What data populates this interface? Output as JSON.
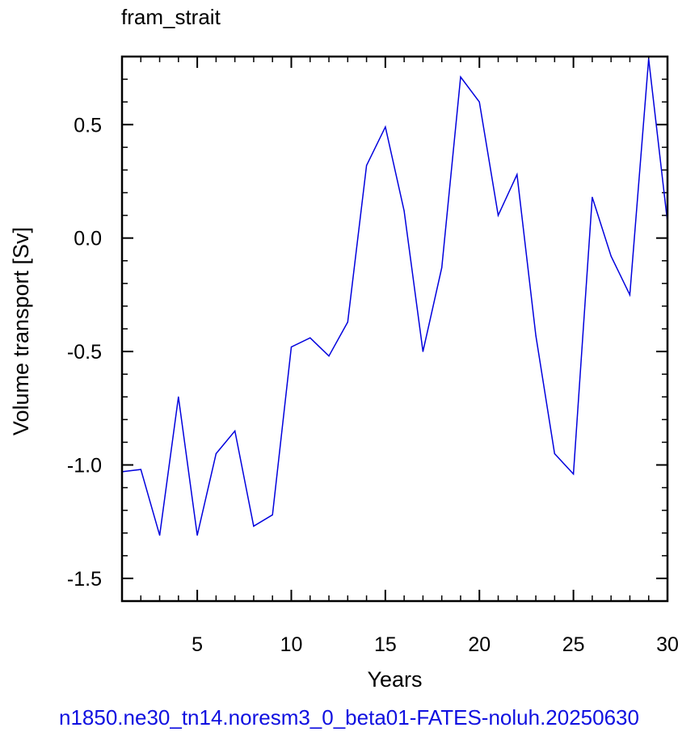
{
  "chart_data": {
    "type": "line",
    "title": "fram_strait",
    "xlabel": "Years",
    "ylabel": "Volume transport [Sv]",
    "footer": "n1850.ne30_tn14.noresm3_0_beta01-FATES-noluh.20250630",
    "xlim": [
      1,
      30
    ],
    "ylim": [
      -1.6,
      0.8
    ],
    "xticks": [
      5,
      10,
      15,
      20,
      25,
      30
    ],
    "xtick_labels": [
      "5",
      "10",
      "15",
      "20",
      "25",
      "30"
    ],
    "yticks": [
      -1.5,
      -1.0,
      -0.5,
      0.0,
      0.5
    ],
    "ytick_labels": [
      "-1.5",
      "-1.0",
      "-0.5",
      "0.0",
      "0.5"
    ],
    "grid": false,
    "series": [
      {
        "color": "#0000dd",
        "x": [
          1,
          2,
          3,
          4,
          5,
          6,
          7,
          8,
          9,
          10,
          11,
          12,
          13,
          14,
          15,
          16,
          17,
          18,
          19,
          20,
          21,
          22,
          23,
          24,
          25,
          26,
          27,
          28,
          29,
          30
        ],
        "values": [
          -1.03,
          -1.02,
          -1.31,
          -0.7,
          -1.31,
          -0.95,
          -0.85,
          -1.27,
          -1.22,
          -0.48,
          -0.44,
          -0.52,
          -0.37,
          0.32,
          0.49,
          0.12,
          -0.5,
          -0.13,
          0.71,
          0.6,
          0.1,
          0.28,
          -0.43,
          -0.95,
          -1.04,
          0.18,
          -0.08,
          -0.25,
          0.79,
          0.07
        ]
      }
    ]
  }
}
